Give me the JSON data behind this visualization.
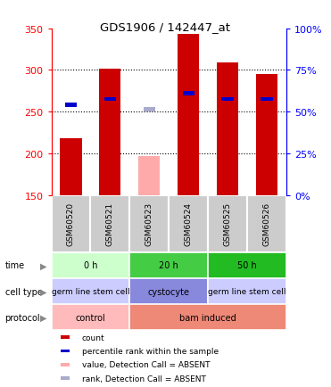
{
  "title": "GDS1906 / 142447_at",
  "samples": [
    "GSM60520",
    "GSM60521",
    "GSM60523",
    "GSM60524",
    "GSM60525",
    "GSM60526"
  ],
  "count_values": [
    218,
    301,
    null,
    343,
    309,
    295
  ],
  "count_absent": [
    null,
    null,
    197,
    null,
    null,
    null
  ],
  "rank_values": [
    258,
    265,
    null,
    272,
    265,
    265
  ],
  "rank_absent": [
    null,
    null,
    253,
    null,
    null,
    null
  ],
  "ylim": [
    150,
    350
  ],
  "yticks": [
    150,
    200,
    250,
    300,
    350
  ],
  "right_yticks": [
    0,
    25,
    50,
    75,
    100
  ],
  "dotted_lines": [
    200,
    250,
    300
  ],
  "bar_color": "#cc0000",
  "bar_absent_color": "#ffaaaa",
  "rank_color": "#0000cc",
  "rank_absent_color": "#aaaacc",
  "time_groups": [
    {
      "label": "0 h",
      "cols": [
        0,
        1
      ],
      "color": "#ccffcc"
    },
    {
      "label": "20 h",
      "cols": [
        2,
        3
      ],
      "color": "#44cc44"
    },
    {
      "label": "50 h",
      "cols": [
        4,
        5
      ],
      "color": "#22bb22"
    }
  ],
  "celltype_groups": [
    {
      "label": "germ line stem cell",
      "cols": [
        0,
        1
      ],
      "color": "#ccccff"
    },
    {
      "label": "cystocyte",
      "cols": [
        2,
        3
      ],
      "color": "#8888dd"
    },
    {
      "label": "germ line stem cell",
      "cols": [
        4,
        5
      ],
      "color": "#ccccff"
    }
  ],
  "protocol_groups": [
    {
      "label": "control",
      "cols": [
        0,
        1
      ],
      "color": "#ffbbbb"
    },
    {
      "label": "bam induced",
      "cols": [
        2,
        3,
        4,
        5
      ],
      "color": "#ee8877"
    }
  ],
  "legend_items": [
    {
      "color": "#cc0000",
      "label": "count"
    },
    {
      "color": "#0000cc",
      "label": "percentile rank within the sample"
    },
    {
      "color": "#ffaaaa",
      "label": "value, Detection Call = ABSENT"
    },
    {
      "color": "#aaaacc",
      "label": "rank, Detection Call = ABSENT"
    }
  ],
  "row_labels": [
    "time",
    "cell type",
    "protocol"
  ],
  "bar_width": 0.55,
  "rank_bar_width": 0.3,
  "rank_bar_height": 5,
  "sample_label_bg": "#cccccc",
  "sample_col_sep": "#ffffff"
}
